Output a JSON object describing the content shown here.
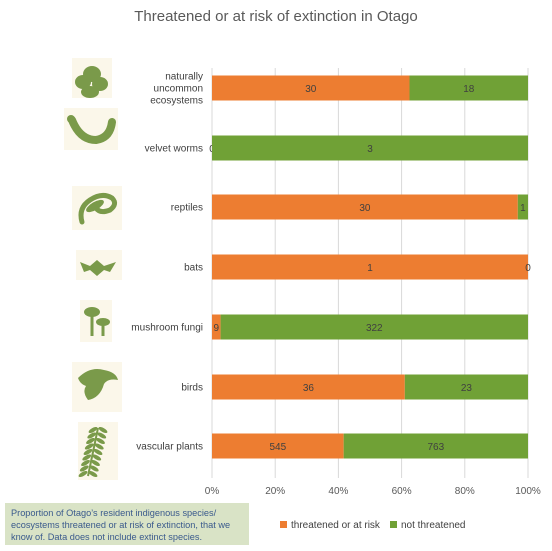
{
  "chart_data": {
    "type": "bar",
    "orientation": "horizontal",
    "stacked": "100%",
    "title": "Threatened or at risk of extinction in Otago",
    "categories": [
      "naturally uncommon ecosystems",
      "velvet worms",
      "reptiles",
      "bats",
      "mushroom fungi",
      "birds",
      "vascular plants"
    ],
    "category_lines": [
      [
        "naturally",
        "uncommon",
        "ecosystems"
      ],
      [
        "velvet worms"
      ],
      [
        "reptiles"
      ],
      [
        "bats"
      ],
      [
        "mushroom fungi"
      ],
      [
        "birds"
      ],
      [
        "vascular plants"
      ]
    ],
    "series": [
      {
        "name": "threatened or at risk",
        "color": "#ed7d31",
        "values": [
          30,
          0,
          30,
          1,
          9,
          36,
          545
        ]
      },
      {
        "name": "not threatened",
        "color": "#70a136",
        "values": [
          18,
          3,
          1,
          0,
          322,
          23,
          763
        ]
      }
    ],
    "x_ticks": [
      "0%",
      "20%",
      "40%",
      "60%",
      "80%",
      "100%"
    ],
    "xlim": [
      0,
      100
    ],
    "legend_position": "bottom",
    "icons": [
      "tussock-plant-icon",
      "velvet-worm-icon",
      "lizard-icon",
      "bat-icon",
      "mushroom-icon",
      "bird-icon",
      "fern-icon"
    ],
    "icon_color": "#7a9a4a"
  },
  "note": "Proportion of Otago’s resident indigenous species/ ecosystems threatened or at risk of extinction, that we know of. Data does not include extinct species."
}
